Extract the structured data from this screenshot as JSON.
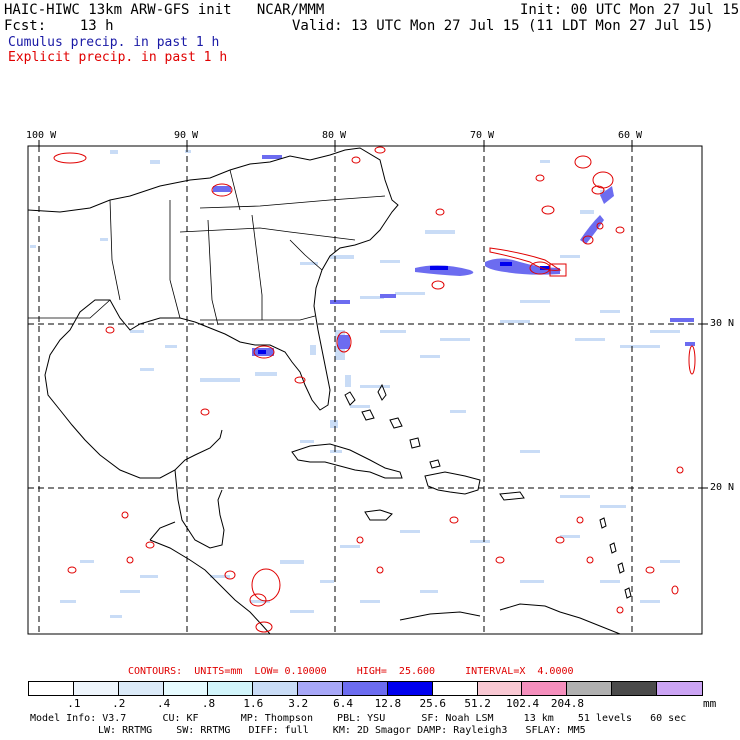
{
  "header": {
    "title": "HAIC-HIWC 13km ARW-GFS init   NCAR/MMM",
    "init": "Init: 00 UTC Mon 27 Jul 15",
    "fcst": "Fcst:    13 h",
    "valid": "Valid: 13 UTC Mon 27 Jul 15 (11 LDT Mon 27 Jul 15)",
    "cumulus": "Cumulus precip. in past 1 h",
    "explicit": "Explicit precip. in past 1 h"
  },
  "lon_labels": [
    "100 W",
    "90 W",
    "80 W",
    "70 W",
    "60 W"
  ],
  "lat_labels": [
    "30 N",
    "20 N"
  ],
  "contours": {
    "label": "CONTOURS:  UNITS=mm  LOW= 0.10000     HIGH=  25.600     INTERVAL=X  4.0000"
  },
  "colorbar": {
    "colors": [
      "#ffffff",
      "#eef5fc",
      "#dbeaf8",
      "#e6fbff",
      "#d2f5fb",
      "#c9dcf6",
      "#a7a7f7",
      "#6c6cf0",
      "#0000ee",
      "#ffffff",
      "#f9c8d3",
      "#f58fbd",
      "#b0b0b0",
      "#4a4a4a",
      "#cba4f3"
    ],
    "ticks": [
      ".1",
      ".2",
      ".4",
      ".8",
      "1.6",
      "3.2",
      "6.4",
      "12.8",
      "25.6",
      "51.2",
      "102.4",
      "204.8"
    ],
    "units": "mm"
  },
  "model_info": {
    "line1": "Model Info: V3.7      CU: KF       MP: Thompson    PBL: YSU      SF: Noah LSM     13 km    51 levels   60 sec",
    "line2": "LW: RRTMG    SW: RRTMG   DIFF: full    KM: 2D Smagor DAMP: Rayleigh3   SFLAY: MM5"
  },
  "colors": {
    "cumulus": "#1a1aa6",
    "explicit": "#e00000",
    "precip_light": "#c9dcf6",
    "precip_mid": "#6c6cf0",
    "precip_heavy": "#0000ee"
  }
}
